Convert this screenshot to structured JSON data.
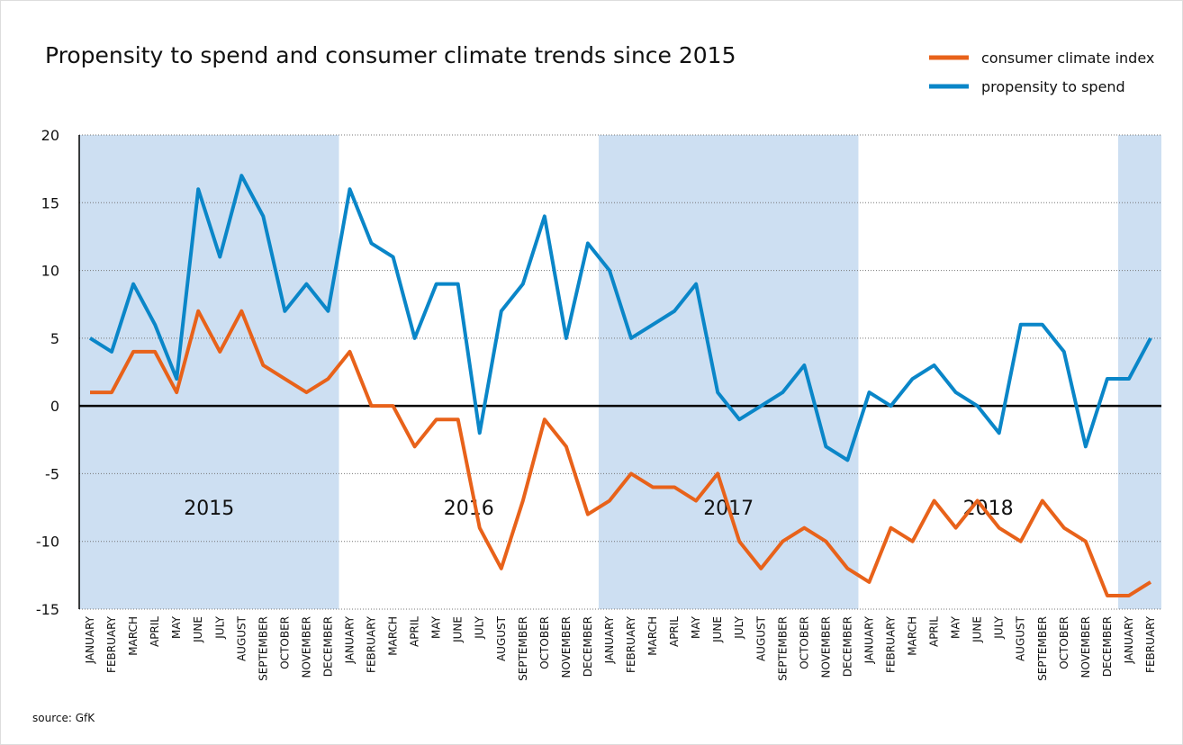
{
  "chart_data": {
    "type": "line",
    "title": "Propensity to spend and consumer climate trends since 2015",
    "source": "source: GfK",
    "year_labels": [
      "2015",
      "2016",
      "2017",
      "2018"
    ],
    "categories": [
      "JANUARY",
      "FEBRUARY",
      "MARCH",
      "APRIL",
      "MAY",
      "JUNE",
      "JULY",
      "AUGUST",
      "SEPTEMBER",
      "OCTOBER",
      "NOVEMBER",
      "DECEMBER",
      "JANUARY",
      "FEBRUARY",
      "MARCH",
      "APRIL",
      "MAY",
      "JUNE",
      "JULY",
      "AUGUST",
      "SEPTEMBER",
      "OCTOBER",
      "NOVEMBER",
      "DECEMBER",
      "JANUARY",
      "FEBRUARY",
      "MARCH",
      "APRIL",
      "MAY",
      "JUNE",
      "JULY",
      "AUGUST",
      "SEPTEMBER",
      "OCTOBER",
      "NOVEMBER",
      "DECEMBER",
      "JANUARY",
      "FEBRUARY",
      "MARCH",
      "APRIL",
      "MAY",
      "JUNE",
      "JULY",
      "AUGUST",
      "SEPTEMBER",
      "OCTOBER",
      "NOVEMBER",
      "DECEMBER",
      "JANUARY",
      "FEBRUARY"
    ],
    "series": [
      {
        "name": "consumer climate index",
        "color": "#e8621a",
        "values": [
          1,
          1,
          4,
          4,
          1,
          7,
          4,
          7,
          3,
          2,
          1,
          2,
          4,
          0,
          0,
          -3,
          -1,
          -1,
          -9,
          -12,
          -7,
          -1,
          -3,
          -8,
          -7,
          -5,
          -6,
          -6,
          -7,
          -5,
          -10,
          -12,
          -10,
          -9,
          -10,
          -12,
          -13,
          -9,
          -10,
          -7,
          -9,
          -7,
          -9,
          -10,
          -7,
          -9,
          -10,
          -14,
          -14,
          -13
        ]
      },
      {
        "name": "propensity to spend",
        "color": "#0a86c8",
        "values": [
          5,
          4,
          9,
          6,
          2,
          16,
          11,
          17,
          14,
          7,
          9,
          7,
          16,
          12,
          11,
          5,
          9,
          9,
          -2,
          7,
          9,
          14,
          5,
          12,
          10,
          5,
          6,
          7,
          9,
          1,
          -1,
          0,
          1,
          3,
          -3,
          -4,
          1,
          0,
          2,
          3,
          1,
          0,
          -2,
          6,
          6,
          4,
          -3,
          2,
          2,
          5
        ]
      }
    ],
    "ylim": [
      -15,
      20
    ],
    "yticks": [
      -15,
      -10,
      -5,
      0,
      5,
      10,
      15,
      20
    ],
    "grid": true
  }
}
